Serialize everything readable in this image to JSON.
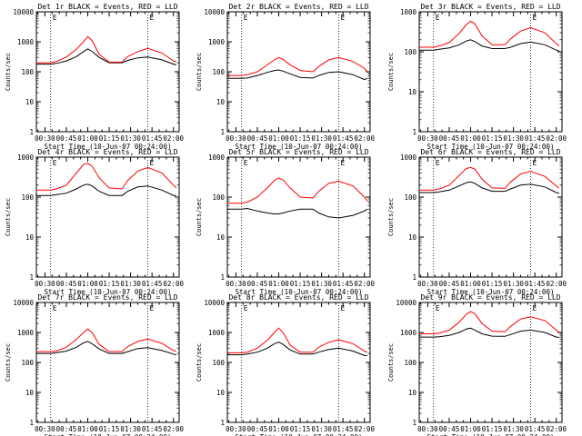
{
  "figure": {
    "xlabel": "Start Time (10-Jun-07 00:24:00)",
    "ylabel": "Counts/sec",
    "x_ticks": [
      "00:30",
      "00:45",
      "01:00",
      "01:15",
      "01:30",
      "01:45",
      "02:00"
    ],
    "colors": {
      "events": "#000000",
      "lld": "#ff0000",
      "axes": "#000000",
      "background": "#ffffff"
    }
  },
  "chart_data": [
    {
      "type": "line",
      "title": "Det 1r BLACK = Events, RED = LLD",
      "xlabel": "Start Time (10-Jun-07 00:24:00)",
      "ylabel": "Counts/sec",
      "scale": "log",
      "xlim": [
        "00:24",
        "02:04"
      ],
      "ylim": [
        1,
        10000
      ],
      "y_ticks": [
        1,
        10,
        100,
        1000,
        10000
      ],
      "x_ticks": [
        "00:30",
        "00:45",
        "01:00",
        "01:15",
        "01:30",
        "01:45",
        "02:00"
      ],
      "marker_lines": [
        "00:34",
        "01:42"
      ],
      "marker_label": "E",
      "x": [
        "00:24",
        "00:34",
        "00:38",
        "00:45",
        "00:52",
        "00:57",
        "01:00",
        "01:03",
        "01:08",
        "01:15",
        "01:24",
        "01:28",
        "01:35",
        "01:42",
        "01:52",
        "02:00",
        "02:02"
      ],
      "series": [
        {
          "name": "Events",
          "values": [
            180,
            180,
            190,
            230,
            320,
            470,
            580,
            480,
            300,
            200,
            200,
            240,
            290,
            310,
            250,
            180,
            170
          ]
        },
        {
          "name": "LLD",
          "values": [
            200,
            200,
            220,
            310,
            560,
            1000,
            1500,
            1100,
            380,
            210,
            210,
            320,
            470,
            600,
            420,
            230,
            220
          ]
        }
      ]
    },
    {
      "type": "line",
      "title": "Det 2r BLACK = Events, RED = LLD",
      "xlabel": "Start Time (10-Jun-07 00:24:00)",
      "ylabel": "Counts/sec",
      "scale": "log",
      "xlim": [
        "00:24",
        "02:04"
      ],
      "ylim": [
        1,
        10000
      ],
      "y_ticks": [
        1,
        10,
        100,
        1000,
        10000
      ],
      "x_ticks": [
        "00:30",
        "00:45",
        "01:00",
        "01:15",
        "01:30",
        "01:45",
        "02:00"
      ],
      "marker_lines": [
        "00:34",
        "01:42"
      ],
      "marker_label": "E",
      "x": [
        "00:24",
        "00:34",
        "00:38",
        "00:45",
        "00:52",
        "00:57",
        "01:00",
        "01:03",
        "01:08",
        "01:15",
        "01:24",
        "01:28",
        "01:35",
        "01:42",
        "01:52",
        "02:00",
        "02:02"
      ],
      "series": [
        {
          "name": "Events",
          "values": [
            60,
            60,
            62,
            75,
            95,
            110,
            115,
            105,
            85,
            65,
            62,
            75,
            95,
            100,
            80,
            55,
            60
          ]
        },
        {
          "name": "LLD",
          "values": [
            75,
            75,
            80,
            100,
            170,
            250,
            300,
            260,
            170,
            110,
            100,
            150,
            250,
            300,
            220,
            130,
            100
          ]
        }
      ]
    },
    {
      "type": "line",
      "title": "Det 3r BLACK = Events, RED = LLD",
      "xlabel": "Start Time (10-Jun-07 00:24:00)",
      "ylabel": "Counts/sec",
      "scale": "log",
      "xlim": [
        "00:24",
        "02:04"
      ],
      "ylim": [
        1,
        1000
      ],
      "y_ticks": [
        1,
        10,
        100,
        1000
      ],
      "x_ticks": [
        "00:30",
        "00:45",
        "01:00",
        "01:15",
        "01:30",
        "01:45",
        "02:00"
      ],
      "marker_lines": [
        "00:34",
        "01:42"
      ],
      "marker_label": "E",
      "x": [
        "00:24",
        "00:34",
        "00:38",
        "00:45",
        "00:52",
        "00:57",
        "01:00",
        "01:03",
        "01:08",
        "01:15",
        "01:24",
        "01:28",
        "01:35",
        "01:42",
        "01:52",
        "02:00",
        "02:02"
      ],
      "series": [
        {
          "name": "Events",
          "values": [
            110,
            110,
            115,
            125,
            150,
            185,
            200,
            180,
            140,
            120,
            120,
            130,
            160,
            175,
            150,
            110,
            105
          ]
        },
        {
          "name": "LLD",
          "values": [
            130,
            130,
            140,
            170,
            290,
            480,
            580,
            500,
            250,
            150,
            150,
            210,
            330,
            400,
            300,
            160,
            140
          ]
        }
      ]
    },
    {
      "type": "line",
      "title": "Det 4r BLACK = Events, RED = LLD",
      "xlabel": "Start Time (10-Jun-07 00:24:00)",
      "ylabel": "Counts/sec",
      "scale": "log",
      "xlim": [
        "00:24",
        "02:04"
      ],
      "ylim": [
        1,
        1000
      ],
      "y_ticks": [
        1,
        10,
        100,
        1000
      ],
      "x_ticks": [
        "00:30",
        "00:45",
        "01:00",
        "01:15",
        "01:30",
        "01:45",
        "02:00"
      ],
      "marker_lines": [
        "00:34",
        "01:42"
      ],
      "marker_label": "E",
      "x": [
        "00:24",
        "00:34",
        "00:38",
        "00:45",
        "00:52",
        "00:57",
        "01:00",
        "01:03",
        "01:08",
        "01:15",
        "01:24",
        "01:28",
        "01:35",
        "01:42",
        "01:52",
        "02:00",
        "02:02"
      ],
      "series": [
        {
          "name": "Events",
          "values": [
            110,
            110,
            115,
            125,
            160,
            200,
            210,
            190,
            140,
            110,
            110,
            140,
            180,
            190,
            150,
            110,
            110
          ]
        },
        {
          "name": "LLD",
          "values": [
            150,
            150,
            160,
            200,
            400,
            650,
            700,
            600,
            300,
            170,
            160,
            260,
            450,
            550,
            400,
            200,
            170
          ]
        }
      ]
    },
    {
      "type": "line",
      "title": "Det 5r BLACK = Events, RED = LLD",
      "xlabel": "Start Time (10-Jun-07 00:24:00)",
      "ylabel": "Counts/sec",
      "scale": "log",
      "xlim": [
        "00:24",
        "02:04"
      ],
      "ylim": [
        1,
        1000
      ],
      "y_ticks": [
        1,
        10,
        100,
        1000
      ],
      "x_ticks": [
        "00:30",
        "00:45",
        "01:00",
        "01:15",
        "01:30",
        "01:45",
        "02:00"
      ],
      "marker_lines": [
        "00:34",
        "01:42"
      ],
      "marker_label": "E",
      "x": [
        "00:24",
        "00:34",
        "00:38",
        "00:45",
        "00:52",
        "00:57",
        "01:00",
        "01:03",
        "01:08",
        "01:15",
        "01:24",
        "01:28",
        "01:35",
        "01:42",
        "01:52",
        "02:00",
        "02:02"
      ],
      "series": [
        {
          "name": "Events",
          "values": [
            50,
            50,
            52,
            45,
            40,
            38,
            38,
            40,
            45,
            50,
            50,
            40,
            32,
            30,
            35,
            45,
            50
          ]
        },
        {
          "name": "LLD",
          "values": [
            70,
            70,
            75,
            100,
            170,
            260,
            300,
            270,
            170,
            100,
            95,
            140,
            220,
            250,
            190,
            100,
            80
          ]
        }
      ]
    },
    {
      "type": "line",
      "title": "Det 6r BLACK = Events, RED = LLD",
      "xlabel": "Start Time (10-Jun-07 00:24:00)",
      "ylabel": "Counts/sec",
      "scale": "log",
      "xlim": [
        "00:24",
        "02:04"
      ],
      "ylim": [
        1,
        1000
      ],
      "y_ticks": [
        1,
        10,
        100,
        1000
      ],
      "x_ticks": [
        "00:30",
        "00:45",
        "01:00",
        "01:15",
        "01:30",
        "01:45",
        "02:00"
      ],
      "marker_lines": [
        "00:34",
        "01:42"
      ],
      "marker_label": "E",
      "x": [
        "00:24",
        "00:34",
        "00:38",
        "00:45",
        "00:52",
        "00:57",
        "01:00",
        "01:03",
        "01:08",
        "01:15",
        "01:24",
        "01:28",
        "01:35",
        "01:42",
        "01:52",
        "02:00",
        "02:02"
      ],
      "series": [
        {
          "name": "Events",
          "values": [
            130,
            130,
            135,
            150,
            190,
            230,
            240,
            220,
            170,
            140,
            140,
            160,
            200,
            210,
            180,
            130,
            125
          ]
        },
        {
          "name": "LLD",
          "values": [
            150,
            150,
            160,
            200,
            350,
            520,
            550,
            500,
            280,
            170,
            165,
            240,
            380,
            440,
            330,
            190,
            170
          ]
        }
      ]
    },
    {
      "type": "line",
      "title": "Det 7r BLACK = Events, RED = LLD",
      "xlabel": "Start Time (10-Jun-07 00:24:00)",
      "ylabel": "Counts/sec",
      "scale": "log",
      "xlim": [
        "00:24",
        "02:04"
      ],
      "ylim": [
        1,
        10000
      ],
      "y_ticks": [
        1,
        10,
        100,
        1000,
        10000
      ],
      "x_ticks": [
        "00:30",
        "00:45",
        "01:00",
        "01:15",
        "01:30",
        "01:45",
        "02:00"
      ],
      "marker_lines": [
        "00:34",
        "01:42"
      ],
      "marker_label": "E",
      "x": [
        "00:24",
        "00:34",
        "00:38",
        "00:45",
        "00:52",
        "00:57",
        "01:00",
        "01:03",
        "01:08",
        "01:15",
        "01:24",
        "01:28",
        "01:35",
        "01:42",
        "01:52",
        "02:00",
        "02:02"
      ],
      "series": [
        {
          "name": "Events",
          "values": [
            200,
            200,
            210,
            240,
            320,
            450,
            500,
            420,
            280,
            200,
            200,
            230,
            290,
            310,
            250,
            190,
            180
          ]
        },
        {
          "name": "LLD",
          "values": [
            230,
            230,
            240,
            320,
            580,
            1000,
            1300,
            1000,
            400,
            230,
            230,
            340,
            500,
            600,
            430,
            250,
            240
          ]
        }
      ]
    },
    {
      "type": "line",
      "title": "Det 8r BLACK = Events, RED = LLD",
      "xlabel": "Start Time (10-Jun-07 00:24:00)",
      "ylabel": "Counts/sec",
      "scale": "log",
      "xlim": [
        "00:24",
        "02:04"
      ],
      "ylim": [
        1,
        10000
      ],
      "y_ticks": [
        1,
        10,
        100,
        1000,
        10000
      ],
      "x_ticks": [
        "00:30",
        "00:45",
        "01:00",
        "01:15",
        "01:30",
        "01:45",
        "02:00"
      ],
      "marker_lines": [
        "00:34",
        "01:42"
      ],
      "marker_label": "E",
      "x": [
        "00:24",
        "00:34",
        "00:38",
        "00:45",
        "00:52",
        "00:57",
        "01:00",
        "01:03",
        "01:08",
        "01:15",
        "01:24",
        "01:28",
        "01:35",
        "01:42",
        "01:52",
        "02:00",
        "02:02"
      ],
      "series": [
        {
          "name": "Events",
          "values": [
            180,
            180,
            190,
            220,
            300,
            420,
            480,
            400,
            260,
            190,
            190,
            220,
            270,
            300,
            240,
            170,
            170
          ]
        },
        {
          "name": "LLD",
          "values": [
            210,
            210,
            220,
            300,
            550,
            1000,
            1400,
            1000,
            380,
            220,
            220,
            320,
            470,
            570,
            420,
            240,
            220
          ]
        }
      ]
    },
    {
      "type": "line",
      "title": "Det 9r BLACK = Events, RED = LLD",
      "xlabel": "Start Time (10-Jun-07 00:24:00)",
      "ylabel": "Counts/sec",
      "scale": "log",
      "xlim": [
        "00:24",
        "02:04"
      ],
      "ylim": [
        1,
        10000
      ],
      "y_ticks": [
        1,
        10,
        100,
        1000,
        10000
      ],
      "x_ticks": [
        "00:30",
        "00:45",
        "01:00",
        "01:15",
        "01:30",
        "01:45",
        "02:00"
      ],
      "marker_lines": [
        "00:34",
        "01:42"
      ],
      "marker_label": "E",
      "x": [
        "00:24",
        "00:34",
        "00:38",
        "00:45",
        "00:52",
        "00:57",
        "01:00",
        "01:03",
        "01:08",
        "01:15",
        "01:24",
        "01:28",
        "01:35",
        "01:42",
        "01:52",
        "02:00",
        "02:02"
      ],
      "series": [
        {
          "name": "Events",
          "values": [
            700,
            700,
            720,
            800,
            1000,
            1300,
            1400,
            1200,
            900,
            750,
            740,
            850,
            1100,
            1200,
            1000,
            700,
            680
          ]
        },
        {
          "name": "LLD",
          "values": [
            900,
            900,
            950,
            1200,
            2200,
            4000,
            5000,
            4200,
            2000,
            1100,
            1050,
            1600,
            2800,
            3300,
            2500,
            1200,
            1000
          ]
        }
      ]
    }
  ]
}
